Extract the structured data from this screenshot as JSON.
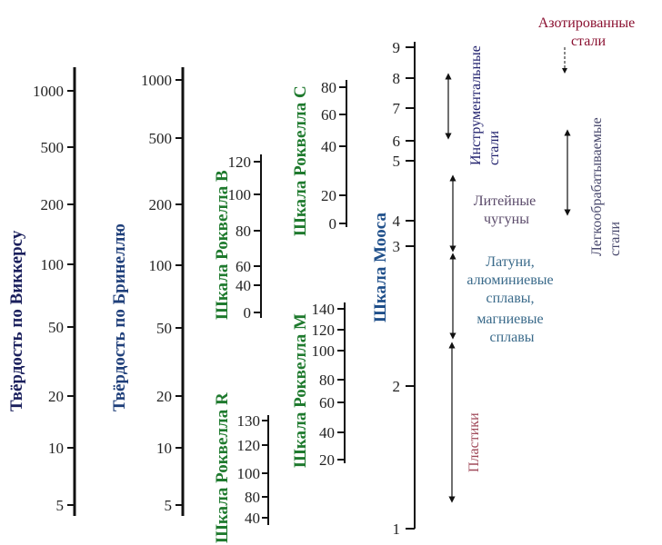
{
  "colors": {
    "axis": "#111111",
    "vickers_title": "#1a1f5c",
    "brinell_title": "#1f3f7a",
    "rockwell_title": "#1f7a2e",
    "mohs_title": "#1f4f8a",
    "tool_steels": "#22226e",
    "nitrided_steels": "#8a1030",
    "free_cutting_steels": "#4a4a6e",
    "cast_irons": "#5a4a6a",
    "nonferrous": "#3a6a8a",
    "plastics": "#a04a5a"
  },
  "scales": {
    "vickers": {
      "title": "Твёрдость по Виккерсу",
      "ticks": [
        "1000",
        "500",
        "200",
        "100",
        "50",
        "20",
        "10",
        "5"
      ]
    },
    "brinell": {
      "title": "Твёрдость по Бринеллю",
      "ticks": [
        "1000",
        "500",
        "200",
        "100",
        "50",
        "20",
        "10",
        "5"
      ]
    },
    "rockwell_b": {
      "title": "Шкала Роквелла B",
      "ticks": [
        "120",
        "100",
        "80",
        "60",
        "40",
        "0"
      ]
    },
    "rockwell_c": {
      "title": "Шкала Роквелла C",
      "ticks": [
        "80",
        "60",
        "40",
        "20",
        "0"
      ]
    },
    "rockwell_m": {
      "title": "Шкала Роквелла M",
      "ticks": [
        "140",
        "120",
        "100",
        "80",
        "60",
        "40",
        "20"
      ]
    },
    "rockwell_r": {
      "title": "Шкала Роквелла R",
      "ticks": [
        "130",
        "120",
        "100",
        "80",
        "40"
      ]
    },
    "mohs": {
      "title": "Шкала Мооса",
      "ticks": [
        "9",
        "8",
        "7",
        "6",
        "5",
        "4",
        "3",
        "2",
        "1"
      ]
    }
  },
  "materials": {
    "tool_steels": [
      "Инструментальные",
      "стали"
    ],
    "nitrided_steels": [
      "Азотированные",
      "стали"
    ],
    "free_cutting_steels": [
      "Легкообрабатываемые",
      "стали"
    ],
    "cast_irons": [
      "Литейные",
      "чугуны"
    ],
    "nonferrous": [
      "Латуни,",
      "алюминиевые",
      "сплавы,",
      "магниевые",
      "сплавы"
    ],
    "plastics": [
      "Пластики"
    ]
  }
}
